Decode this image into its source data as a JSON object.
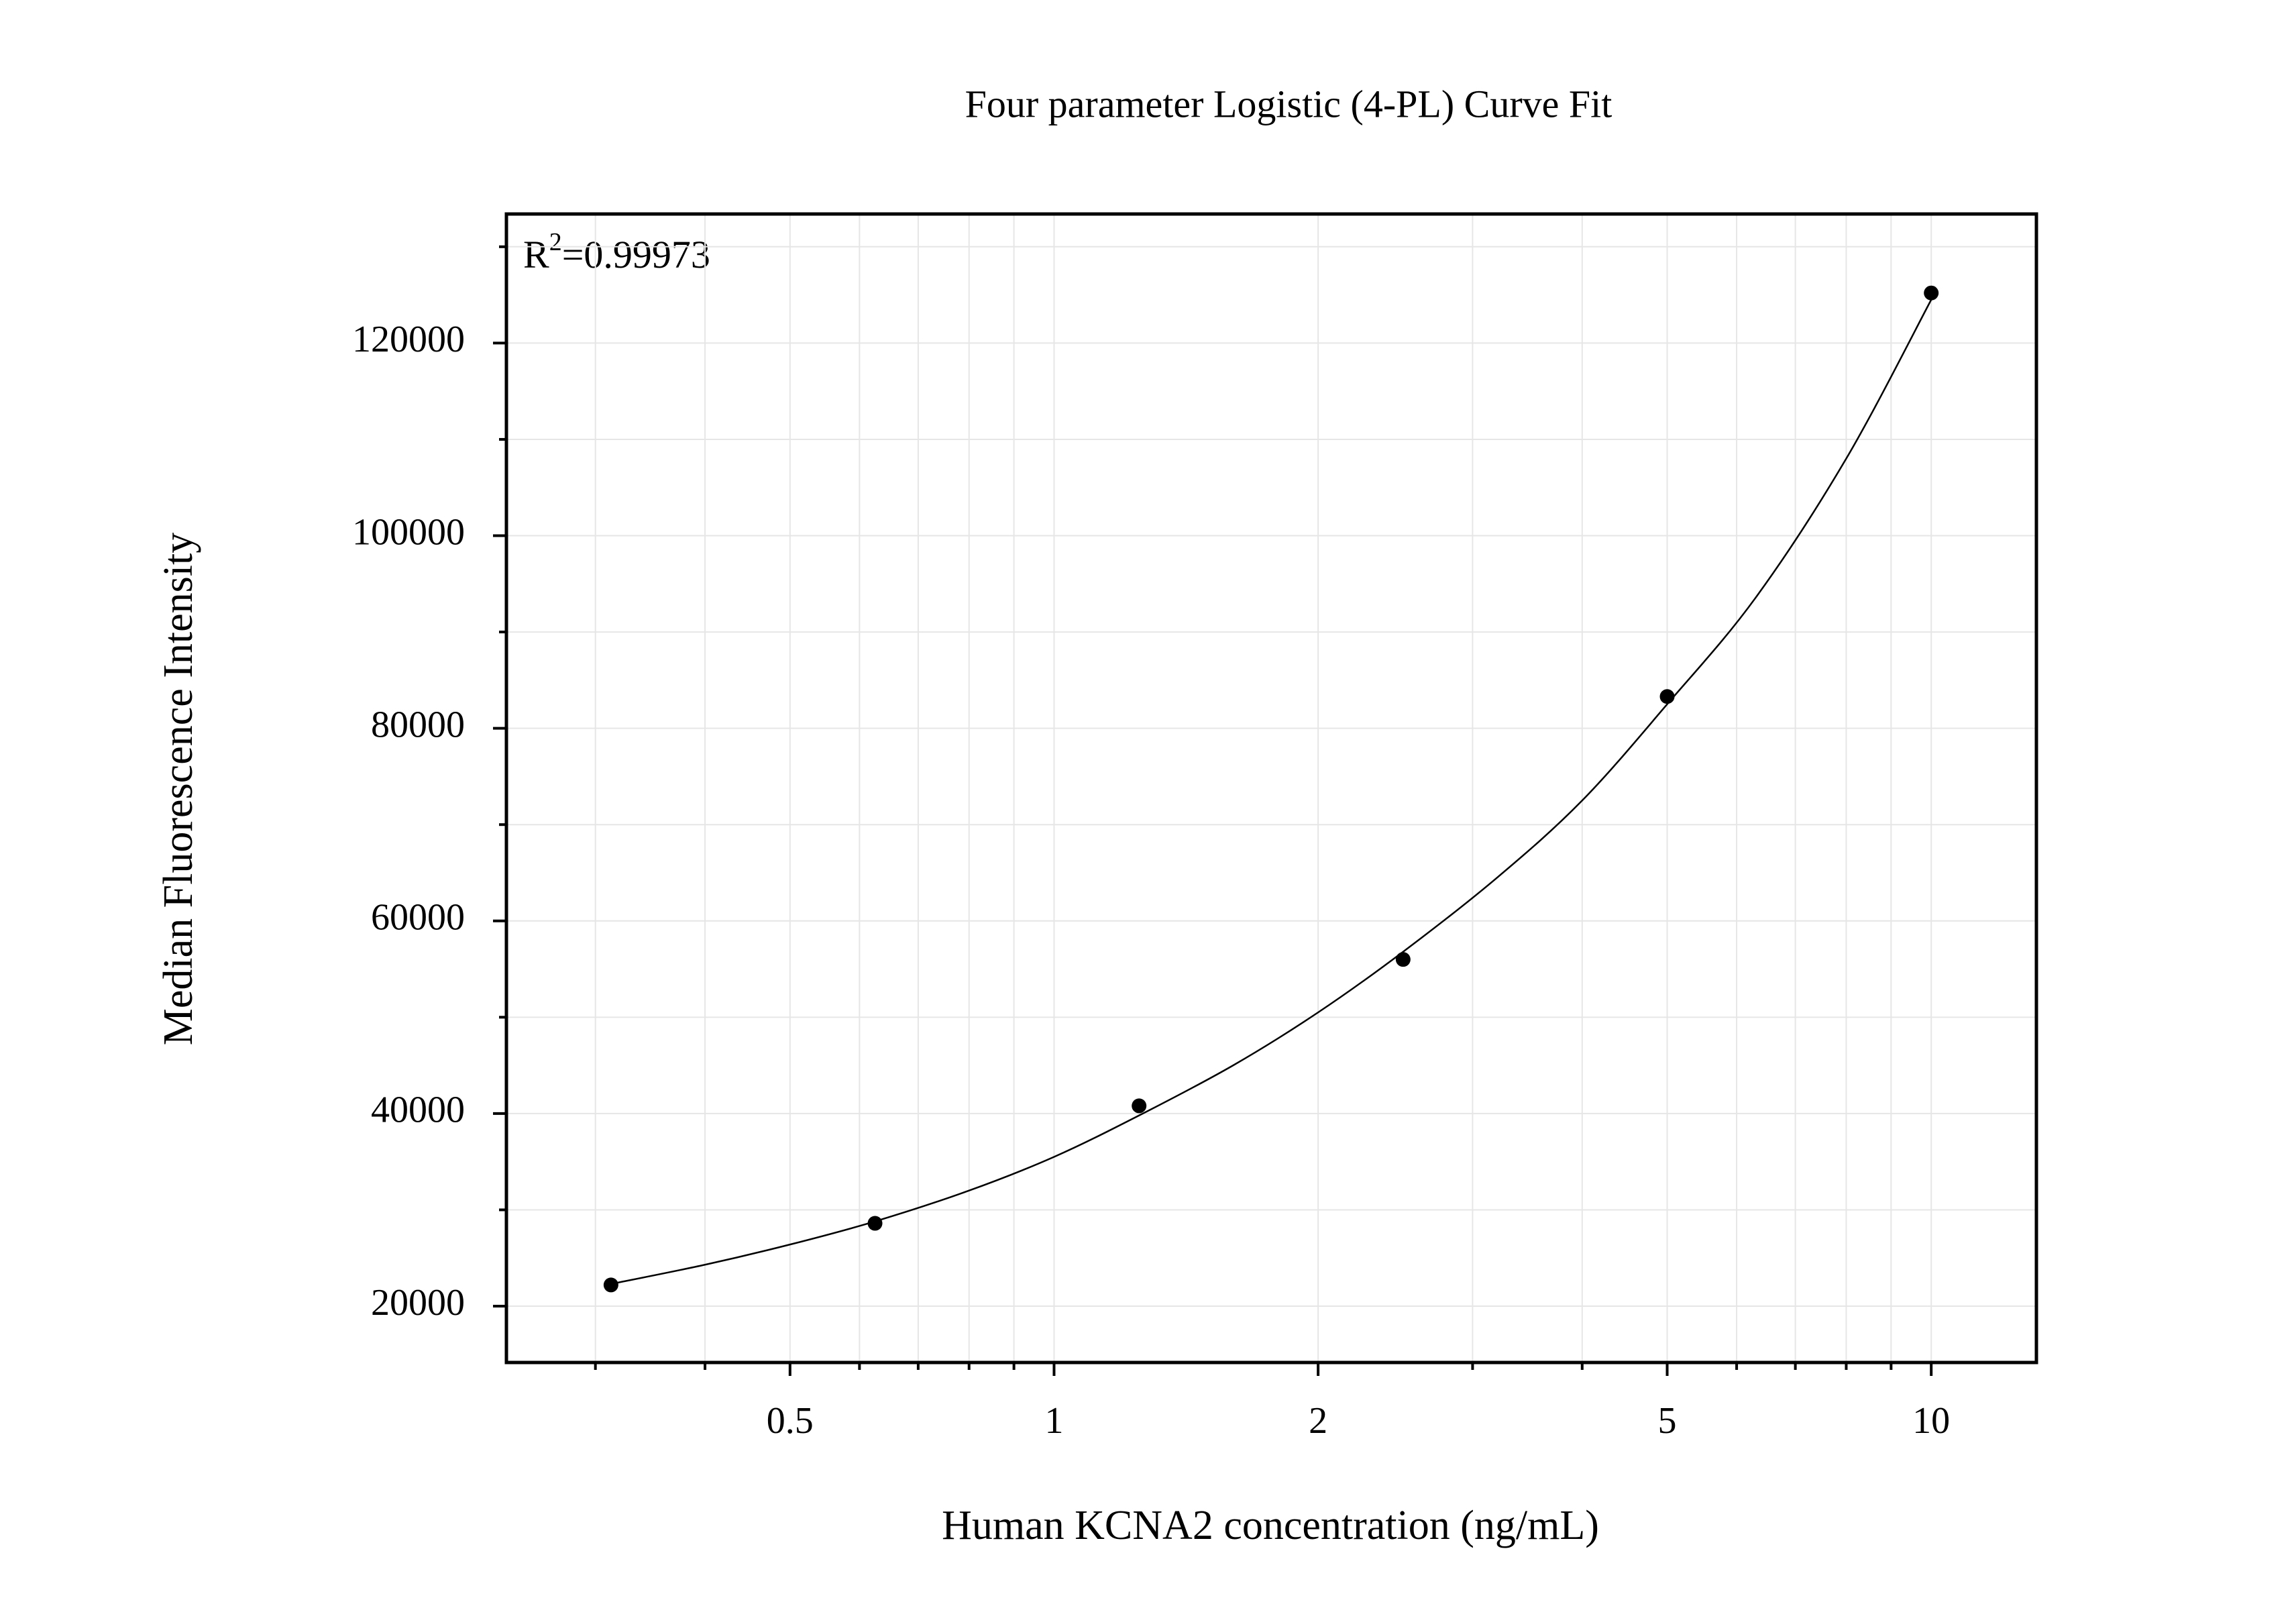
{
  "chart_data": {
    "type": "scatter",
    "title": "Four parameter Logistic (4-PL) Curve Fit",
    "x_label": "Human KCNA2 concentration (ng/mL)",
    "y_label": "Median Fluorescence Intensity",
    "annotation": {
      "base": "R",
      "sup": "2",
      "rest": "=0.99973"
    },
    "xscale": "log",
    "xlim": [
      0.2375,
      13.18
    ],
    "ylim": [
      14150,
      133400
    ],
    "xticks": [
      0.5,
      1,
      2,
      5,
      10
    ],
    "xminorticks": [
      0.3,
      0.4,
      0.6,
      0.7,
      0.8,
      0.9,
      3,
      4,
      6,
      7,
      8,
      9
    ],
    "yticks": [
      20000,
      40000,
      60000,
      80000,
      100000,
      120000
    ],
    "yminorticks": [
      30000,
      50000,
      70000,
      90000,
      110000,
      130000
    ],
    "grid": true,
    "series": [
      {
        "kind": "points",
        "color": "#000000",
        "x": [
          0.3125,
          0.625,
          1.25,
          2.5,
          5,
          10
        ],
        "values": [
          22200,
          28600,
          40800,
          56000,
          83300,
          125200
        ]
      },
      {
        "kind": "line",
        "color": "#000000",
        "x": [
          0.3125,
          0.4,
          0.5,
          0.625,
          0.8,
          1,
          1.25,
          1.6,
          2,
          2.5,
          3.2,
          4,
          5,
          6.3,
          8,
          10
        ],
        "values": [
          22300,
          24300,
          26400,
          28800,
          32000,
          35500,
          39800,
          45000,
          50500,
          56800,
          64500,
          72500,
          82500,
          93500,
          108000,
          124500
        ]
      }
    ]
  }
}
